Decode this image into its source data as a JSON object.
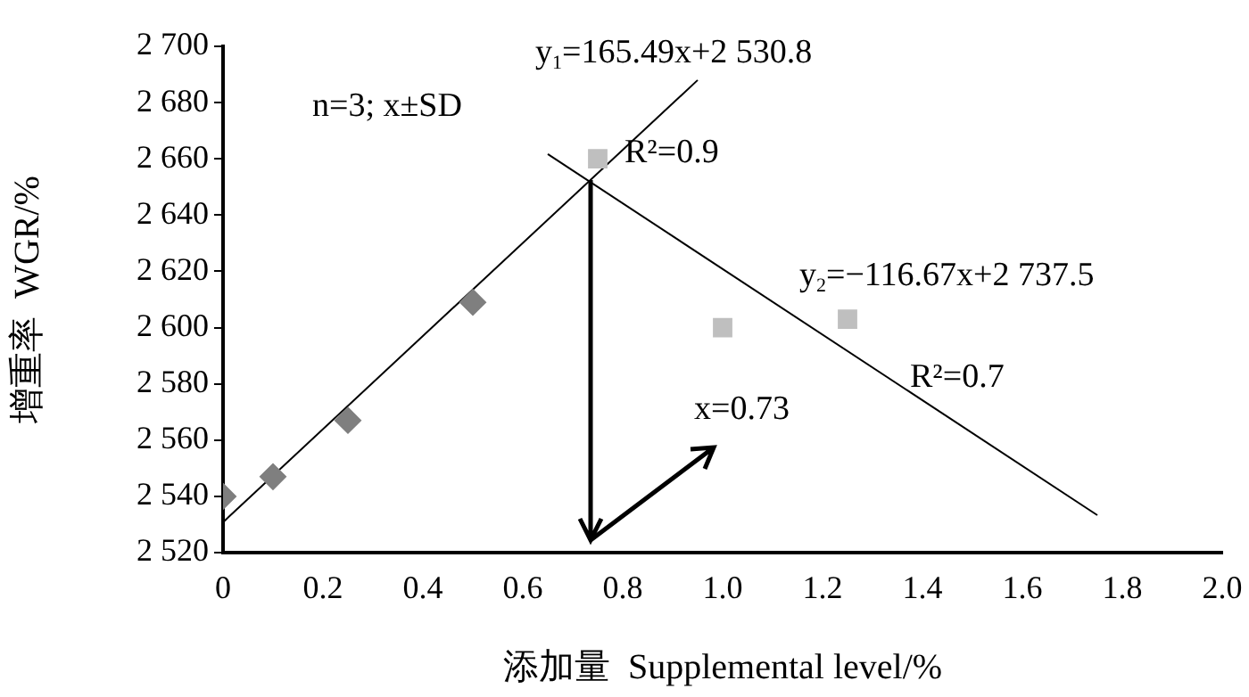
{
  "chart_data": {
    "type": "scatter",
    "xlabel": "添加量  Supplemental level/%",
    "ylabel": "增重率  WGR/%",
    "xlim": [
      0,
      2
    ],
    "xticks": [
      0,
      0.2,
      0.4,
      0.6,
      0.8,
      {
        "value": 1,
        "label": "1.0"
      },
      1.2,
      1.4,
      1.6,
      1.8,
      {
        "value": 2,
        "label": "2.0"
      }
    ],
    "ylim": [
      2520,
      2700
    ],
    "yticks": [
      {
        "value": 2520,
        "label": "2 520"
      },
      {
        "value": 2540,
        "label": "2 540"
      },
      {
        "value": 2560,
        "label": "2 560"
      },
      {
        "value": 2580,
        "label": "2 580"
      },
      {
        "value": 2600,
        "label": "2 600"
      },
      {
        "value": 2620,
        "label": "2 620"
      },
      {
        "value": 2640,
        "label": "2 640"
      },
      {
        "value": 2660,
        "label": "2 660"
      },
      {
        "value": 2680,
        "label": "2 680"
      },
      {
        "value": 2700,
        "label": "2 700"
      }
    ],
    "grid": false,
    "legend": false,
    "series": [
      {
        "color": "#7f7f7f",
        "marker": "diamond",
        "x": [
          0,
          0.1,
          0.25,
          0.5
        ],
        "values": [
          2540,
          2547,
          2567,
          2609
        ]
      },
      {
        "color": "#bfbfbf",
        "marker": "square",
        "x": [
          0.75,
          1,
          1.25
        ],
        "values": [
          2660,
          2600,
          2603
        ]
      },
      {
        "type": "line",
        "color": "#000000",
        "marker": "none",
        "x": [
          0,
          0.95
        ],
        "values": [
          2530.8,
          2688
        ]
      },
      {
        "type": "line",
        "color": "#000000",
        "marker": "none",
        "x": [
          0.65,
          1.75
        ],
        "values": [
          2661.7,
          2533.3
        ]
      }
    ],
    "annotations": [
      "y$_{1}$=165.49x+2 530.8",
      "n=3; x±SD",
      "R²=0.9",
      "y$_{2}$=−116.67x+2 737.5",
      "R²=0.7",
      "x=0.73"
    ]
  }
}
